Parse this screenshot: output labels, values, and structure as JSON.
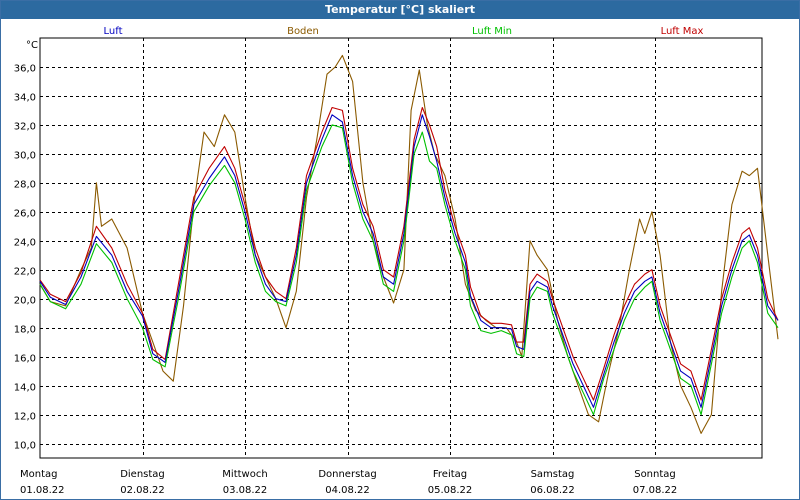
{
  "window": {
    "title": "Temperatur [°C] skaliert"
  },
  "chart_data": {
    "type": "line",
    "title": "Temperatur [°C] skaliert",
    "ylabel": "°C",
    "ylim": [
      9.0,
      38.0
    ],
    "yticks": [
      10.0,
      12.0,
      14.0,
      16.0,
      18.0,
      20.0,
      22.0,
      24.0,
      26.0,
      28.0,
      30.0,
      32.0,
      34.0,
      36.0
    ],
    "ytick_labels": [
      "10,0",
      "12,0",
      "14,0",
      "16,0",
      "18,0",
      "20,0",
      "22,0",
      "24,0",
      "26,0",
      "28,0",
      "30,0",
      "32,0",
      "34,0",
      "36,0"
    ],
    "xlim": [
      0,
      7
    ],
    "day_labels": [
      {
        "day": "Montag",
        "date": "01.08.22",
        "x": 0
      },
      {
        "day": "Dienstag",
        "date": "02.08.22",
        "x": 1
      },
      {
        "day": "Mittwoch",
        "date": "03.08.22",
        "x": 2
      },
      {
        "day": "Donnerstag",
        "date": "04.08.22",
        "x": 3
      },
      {
        "day": "Freitag",
        "date": "05.08.22",
        "x": 4
      },
      {
        "day": "Samstag",
        "date": "06.08.22",
        "x": 5
      },
      {
        "day": "Sonntag",
        "date": "07.08.22",
        "x": 6
      }
    ],
    "grid": true,
    "legend_placement": "top",
    "series": [
      {
        "name": "Luft",
        "color": "#0000c0",
        "points": [
          [
            0,
            21.2
          ],
          [
            0.1,
            20.1
          ],
          [
            0.25,
            19.6
          ],
          [
            0.4,
            21.5
          ],
          [
            0.55,
            24.3
          ],
          [
            0.7,
            23.0
          ],
          [
            0.85,
            20.5
          ],
          [
            1.0,
            18.8
          ],
          [
            1.1,
            16.2
          ],
          [
            1.22,
            15.6
          ],
          [
            1.35,
            20.5
          ],
          [
            1.5,
            26.5
          ],
          [
            1.65,
            28.3
          ],
          [
            1.8,
            29.8
          ],
          [
            1.9,
            28.5
          ],
          [
            2.0,
            26.0
          ],
          [
            2.1,
            23.0
          ],
          [
            2.2,
            21.0
          ],
          [
            2.3,
            20.0
          ],
          [
            2.4,
            19.8
          ],
          [
            2.5,
            23.0
          ],
          [
            2.6,
            28.0
          ],
          [
            2.75,
            31.0
          ],
          [
            2.85,
            32.7
          ],
          [
            2.95,
            32.2
          ],
          [
            3.05,
            28.5
          ],
          [
            3.15,
            26.0
          ],
          [
            3.25,
            24.5
          ],
          [
            3.35,
            21.5
          ],
          [
            3.45,
            21.0
          ],
          [
            3.55,
            24.5
          ],
          [
            3.65,
            30.5
          ],
          [
            3.73,
            32.7
          ],
          [
            3.8,
            31.2
          ],
          [
            3.87,
            29.5
          ],
          [
            3.95,
            27.0
          ],
          [
            4.05,
            24.5
          ],
          [
            4.15,
            22.5
          ],
          [
            4.2,
            20.2
          ],
          [
            4.3,
            18.5
          ],
          [
            4.4,
            18.0
          ],
          [
            4.5,
            18.0
          ],
          [
            4.6,
            17.9
          ],
          [
            4.65,
            16.7
          ],
          [
            4.72,
            16.5
          ],
          [
            4.78,
            20.5
          ],
          [
            4.85,
            21.2
          ],
          [
            4.95,
            20.8
          ],
          [
            5.0,
            19.5
          ],
          [
            5.1,
            17.5
          ],
          [
            5.2,
            15.5
          ],
          [
            5.3,
            14.0
          ],
          [
            5.4,
            12.5
          ],
          [
            5.5,
            14.8
          ],
          [
            5.6,
            17.0
          ],
          [
            5.7,
            19.0
          ],
          [
            5.8,
            20.5
          ],
          [
            5.9,
            21.2
          ],
          [
            5.97,
            21.5
          ],
          [
            6.05,
            19.0
          ],
          [
            6.15,
            17.0
          ],
          [
            6.25,
            15.0
          ],
          [
            6.35,
            14.5
          ],
          [
            6.45,
            12.5
          ],
          [
            6.55,
            16.0
          ],
          [
            6.65,
            19.5
          ],
          [
            6.75,
            22.0
          ],
          [
            6.85,
            24.0
          ],
          [
            6.92,
            24.4
          ],
          [
            7.0,
            23.0
          ],
          [
            7.1,
            19.5
          ],
          [
            7.2,
            18.5
          ]
        ]
      },
      {
        "name": "Boden",
        "color": "#8b5a00",
        "points": [
          [
            0,
            21.0
          ],
          [
            0.1,
            19.8
          ],
          [
            0.25,
            19.5
          ],
          [
            0.4,
            22.0
          ],
          [
            0.5,
            23.5
          ],
          [
            0.55,
            28.0
          ],
          [
            0.6,
            25.0
          ],
          [
            0.7,
            25.5
          ],
          [
            0.85,
            23.5
          ],
          [
            1.0,
            19.0
          ],
          [
            1.1,
            17.0
          ],
          [
            1.2,
            15.0
          ],
          [
            1.3,
            14.3
          ],
          [
            1.4,
            19.5
          ],
          [
            1.5,
            26.5
          ],
          [
            1.6,
            31.5
          ],
          [
            1.7,
            30.5
          ],
          [
            1.8,
            32.7
          ],
          [
            1.9,
            31.5
          ],
          [
            2.0,
            27.0
          ],
          [
            2.1,
            23.0
          ],
          [
            2.2,
            21.5
          ],
          [
            2.3,
            20.0
          ],
          [
            2.4,
            18.0
          ],
          [
            2.5,
            20.5
          ],
          [
            2.6,
            27.0
          ],
          [
            2.7,
            31.0
          ],
          [
            2.8,
            35.5
          ],
          [
            2.88,
            36.0
          ],
          [
            2.95,
            36.8
          ],
          [
            3.05,
            35.0
          ],
          [
            3.15,
            28.0
          ],
          [
            3.25,
            24.0
          ],
          [
            3.35,
            21.5
          ],
          [
            3.45,
            19.7
          ],
          [
            3.55,
            22.0
          ],
          [
            3.62,
            33.0
          ],
          [
            3.7,
            35.8
          ],
          [
            3.78,
            32.0
          ],
          [
            3.85,
            30.0
          ],
          [
            3.95,
            28.5
          ],
          [
            4.05,
            25.5
          ],
          [
            4.15,
            21.0
          ],
          [
            4.25,
            19.2
          ],
          [
            4.35,
            18.5
          ],
          [
            4.45,
            18.0
          ],
          [
            4.55,
            18.0
          ],
          [
            4.65,
            17.0
          ],
          [
            4.7,
            16.0
          ],
          [
            4.78,
            24.0
          ],
          [
            4.85,
            23.0
          ],
          [
            4.95,
            22.0
          ],
          [
            5.05,
            18.5
          ],
          [
            5.15,
            16.0
          ],
          [
            5.25,
            14.0
          ],
          [
            5.35,
            12.0
          ],
          [
            5.45,
            11.5
          ],
          [
            5.55,
            15.0
          ],
          [
            5.65,
            18.0
          ],
          [
            5.75,
            22.0
          ],
          [
            5.85,
            25.5
          ],
          [
            5.9,
            24.5
          ],
          [
            5.97,
            26.0
          ],
          [
            6.05,
            23.0
          ],
          [
            6.15,
            17.0
          ],
          [
            6.25,
            14.0
          ],
          [
            6.35,
            12.5
          ],
          [
            6.45,
            10.7
          ],
          [
            6.55,
            12.0
          ],
          [
            6.65,
            20.5
          ],
          [
            6.75,
            26.5
          ],
          [
            6.85,
            28.8
          ],
          [
            6.92,
            28.5
          ],
          [
            7.0,
            29.0
          ],
          [
            7.1,
            23.0
          ],
          [
            7.2,
            17.2
          ]
        ]
      },
      {
        "name": "Luft Min",
        "color": "#00c000",
        "points": [
          [
            0,
            21.0
          ],
          [
            0.1,
            19.8
          ],
          [
            0.25,
            19.3
          ],
          [
            0.4,
            21.0
          ],
          [
            0.55,
            23.8
          ],
          [
            0.7,
            22.5
          ],
          [
            0.85,
            20.0
          ],
          [
            1.0,
            18.0
          ],
          [
            1.1,
            15.8
          ],
          [
            1.22,
            15.3
          ],
          [
            1.35,
            20.0
          ],
          [
            1.5,
            26.0
          ],
          [
            1.65,
            27.8
          ],
          [
            1.8,
            29.2
          ],
          [
            1.9,
            28.0
          ],
          [
            2.0,
            25.5
          ],
          [
            2.1,
            22.5
          ],
          [
            2.2,
            20.5
          ],
          [
            2.3,
            19.8
          ],
          [
            2.4,
            19.5
          ],
          [
            2.5,
            22.5
          ],
          [
            2.6,
            27.5
          ],
          [
            2.75,
            30.5
          ],
          [
            2.85,
            32.0
          ],
          [
            2.95,
            31.8
          ],
          [
            3.05,
            28.0
          ],
          [
            3.15,
            25.5
          ],
          [
            3.25,
            24.0
          ],
          [
            3.35,
            21.0
          ],
          [
            3.45,
            20.5
          ],
          [
            3.55,
            24.0
          ],
          [
            3.65,
            30.0
          ],
          [
            3.73,
            31.5
          ],
          [
            3.8,
            29.5
          ],
          [
            3.87,
            29.0
          ],
          [
            3.95,
            26.5
          ],
          [
            4.05,
            24.0
          ],
          [
            4.15,
            22.0
          ],
          [
            4.2,
            19.5
          ],
          [
            4.3,
            17.8
          ],
          [
            4.4,
            17.6
          ],
          [
            4.5,
            17.8
          ],
          [
            4.6,
            17.5
          ],
          [
            4.65,
            16.2
          ],
          [
            4.72,
            16.0
          ],
          [
            4.78,
            20.0
          ],
          [
            4.85,
            20.8
          ],
          [
            4.95,
            20.5
          ],
          [
            5.0,
            19.0
          ],
          [
            5.1,
            17.0
          ],
          [
            5.2,
            15.0
          ],
          [
            5.3,
            13.5
          ],
          [
            5.4,
            12.0
          ],
          [
            5.5,
            14.5
          ],
          [
            5.6,
            16.5
          ],
          [
            5.7,
            18.5
          ],
          [
            5.8,
            20.0
          ],
          [
            5.9,
            20.8
          ],
          [
            5.97,
            21.2
          ],
          [
            6.05,
            18.5
          ],
          [
            6.15,
            16.5
          ],
          [
            6.25,
            14.5
          ],
          [
            6.35,
            14.0
          ],
          [
            6.45,
            12.0
          ],
          [
            6.55,
            15.5
          ],
          [
            6.65,
            19.0
          ],
          [
            6.75,
            21.5
          ],
          [
            6.85,
            23.5
          ],
          [
            6.92,
            24.0
          ],
          [
            7.0,
            22.5
          ],
          [
            7.1,
            19.0
          ],
          [
            7.2,
            18.0
          ]
        ]
      },
      {
        "name": "Luft Max",
        "color": "#c00000",
        "points": [
          [
            0,
            21.3
          ],
          [
            0.1,
            20.3
          ],
          [
            0.25,
            19.8
          ],
          [
            0.4,
            21.8
          ],
          [
            0.55,
            25.0
          ],
          [
            0.7,
            23.5
          ],
          [
            0.85,
            21.0
          ],
          [
            1.0,
            19.0
          ],
          [
            1.1,
            16.5
          ],
          [
            1.22,
            15.8
          ],
          [
            1.35,
            21.0
          ],
          [
            1.5,
            27.0
          ],
          [
            1.65,
            29.0
          ],
          [
            1.8,
            30.5
          ],
          [
            1.9,
            29.0
          ],
          [
            2.0,
            26.5
          ],
          [
            2.1,
            23.5
          ],
          [
            2.2,
            21.5
          ],
          [
            2.3,
            20.5
          ],
          [
            2.4,
            20.0
          ],
          [
            2.5,
            23.5
          ],
          [
            2.6,
            28.5
          ],
          [
            2.75,
            31.5
          ],
          [
            2.85,
            33.2
          ],
          [
            2.95,
            33.0
          ],
          [
            3.05,
            29.0
          ],
          [
            3.15,
            26.5
          ],
          [
            3.25,
            25.0
          ],
          [
            3.35,
            22.0
          ],
          [
            3.45,
            21.5
          ],
          [
            3.55,
            25.0
          ],
          [
            3.65,
            31.0
          ],
          [
            3.73,
            33.2
          ],
          [
            3.8,
            32.0
          ],
          [
            3.87,
            30.5
          ],
          [
            3.95,
            27.5
          ],
          [
            4.05,
            25.0
          ],
          [
            4.15,
            23.0
          ],
          [
            4.2,
            20.8
          ],
          [
            4.3,
            18.8
          ],
          [
            4.4,
            18.3
          ],
          [
            4.5,
            18.3
          ],
          [
            4.6,
            18.2
          ],
          [
            4.65,
            17.0
          ],
          [
            4.72,
            17.0
          ],
          [
            4.78,
            21.0
          ],
          [
            4.85,
            21.7
          ],
          [
            4.95,
            21.2
          ],
          [
            5.0,
            20.0
          ],
          [
            5.1,
            18.0
          ],
          [
            5.2,
            16.0
          ],
          [
            5.3,
            14.5
          ],
          [
            5.4,
            13.0
          ],
          [
            5.5,
            15.2
          ],
          [
            5.6,
            17.5
          ],
          [
            5.7,
            19.5
          ],
          [
            5.8,
            21.0
          ],
          [
            5.9,
            21.7
          ],
          [
            5.97,
            22.0
          ],
          [
            6.05,
            19.5
          ],
          [
            6.15,
            17.5
          ],
          [
            6.25,
            15.5
          ],
          [
            6.35,
            15.0
          ],
          [
            6.45,
            13.0
          ],
          [
            6.55,
            16.5
          ],
          [
            6.65,
            20.0
          ],
          [
            6.75,
            22.5
          ],
          [
            6.85,
            24.5
          ],
          [
            6.92,
            24.9
          ],
          [
            7.0,
            23.5
          ],
          [
            7.1,
            20.0
          ],
          [
            7.2,
            18.5
          ]
        ]
      }
    ]
  }
}
